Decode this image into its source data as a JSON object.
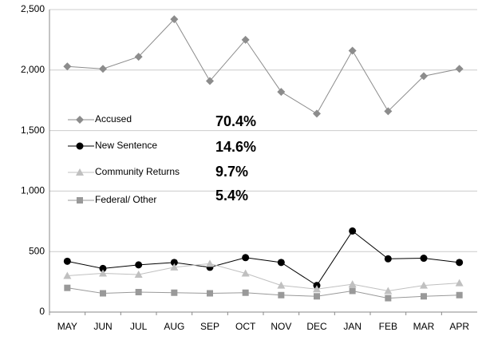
{
  "chart_data": {
    "type": "line",
    "categories": [
      "MAY",
      "JUN",
      "JUL",
      "AUG",
      "SEP",
      "OCT",
      "NOV",
      "DEC",
      "JAN",
      "FEB",
      "MAR",
      "APR"
    ],
    "series": [
      {
        "name": "Accused",
        "color": "#8c8c8c",
        "marker": "diamond",
        "values": [
          2030,
          2010,
          2110,
          2420,
          1910,
          2250,
          1820,
          1640,
          2160,
          1660,
          1950,
          2010
        ]
      },
      {
        "name": "New Sentence",
        "color": "#000000",
        "marker": "circle",
        "values": [
          420,
          360,
          390,
          410,
          370,
          450,
          410,
          220,
          670,
          440,
          445,
          410
        ]
      },
      {
        "name": "Community Returns",
        "color": "#c0c0c0",
        "marker": "triangle",
        "values": [
          300,
          320,
          310,
          370,
          400,
          320,
          220,
          190,
          230,
          175,
          220,
          240
        ]
      },
      {
        "name": "Federal/ Other",
        "color": "#999999",
        "marker": "square",
        "values": [
          200,
          155,
          165,
          160,
          155,
          160,
          140,
          130,
          175,
          115,
          130,
          140
        ]
      }
    ],
    "annotations": [
      "70.4%",
      "14.6%",
      "9.7%",
      "5.4%"
    ],
    "ylim": [
      0,
      2500
    ],
    "yticks": [
      0,
      {
        "value": 500,
        "label": "500"
      },
      {
        "value": 1000,
        "label": "1,000"
      },
      {
        "value": 1500,
        "label": "1,500"
      },
      {
        "value": 2000,
        "label": "2,000"
      },
      {
        "value": 2500,
        "label": "2,500"
      }
    ],
    "grid": true
  }
}
